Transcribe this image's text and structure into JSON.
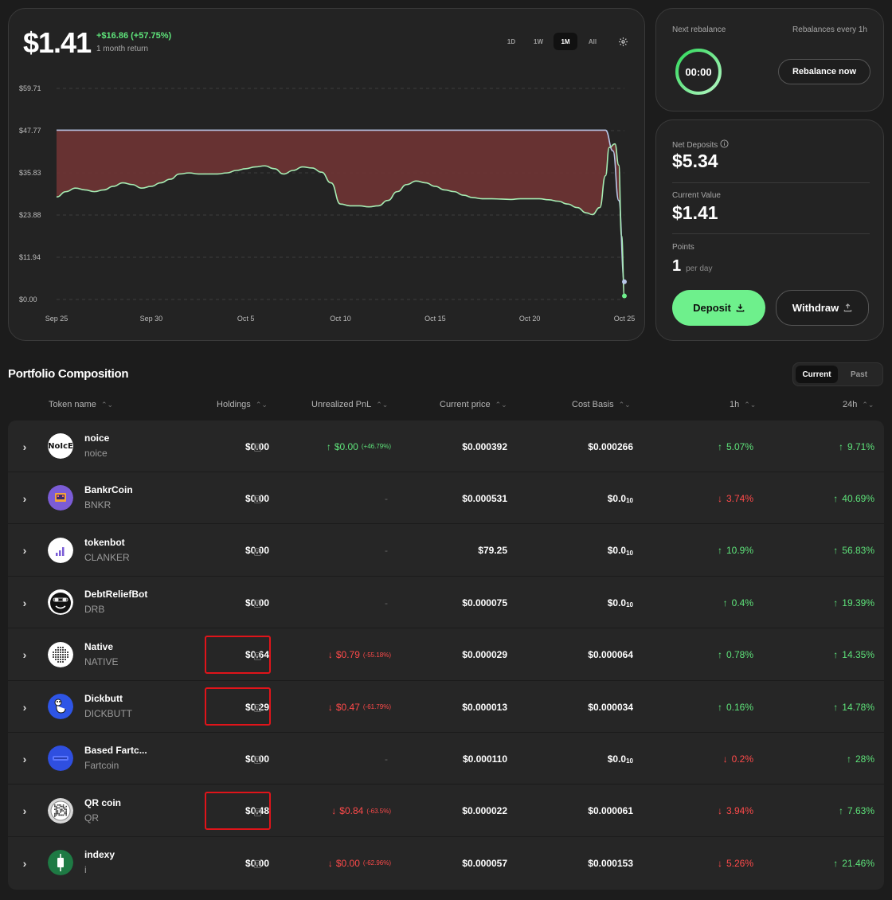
{
  "summary": {
    "value": "$1.41",
    "change": "+$16.86 (+57.75%)",
    "change_label": "1 month return",
    "ranges": [
      "1D",
      "1W",
      "1M",
      "All"
    ],
    "active_range": "1M"
  },
  "chart_data": {
    "type": "area",
    "y_ticks": [
      "$59.71",
      "$47.77",
      "$35.83",
      "$23.88",
      "$11.94",
      "$0.00"
    ],
    "x_ticks": [
      "Sep 25",
      "Sep 30",
      "Oct 5",
      "Oct 10",
      "Oct 15",
      "Oct 20",
      "Oct 25"
    ],
    "ylim": [
      0,
      59.71
    ],
    "xlim": [
      0,
      30
    ],
    "grid": true,
    "colors": {
      "line_upper": "#b9c6e8",
      "line_lower": "#a6ecb3",
      "fill": "#6b3434"
    },
    "series": [
      {
        "values": [
          [
            0,
            47.9
          ],
          [
            5,
            47.9
          ],
          [
            10,
            47.9
          ],
          [
            15,
            47.9
          ],
          [
            20,
            47.9
          ],
          [
            25,
            47.9
          ],
          [
            29.0,
            47.9
          ],
          [
            29.4,
            42
          ],
          [
            29.7,
            28
          ],
          [
            30,
            5
          ]
        ]
      },
      {
        "values": [
          [
            0,
            29
          ],
          [
            0.5,
            30.5
          ],
          [
            1,
            31.5
          ],
          [
            1.5,
            31
          ],
          [
            2,
            30.5
          ],
          [
            2.5,
            31
          ],
          [
            3,
            32
          ],
          [
            3.5,
            33
          ],
          [
            4,
            32.5
          ],
          [
            4.5,
            31.5
          ],
          [
            5,
            32
          ],
          [
            5.5,
            33
          ],
          [
            6,
            34
          ],
          [
            6.5,
            35.5
          ],
          [
            7,
            35.8
          ],
          [
            7.5,
            35.5
          ],
          [
            8,
            35.5
          ],
          [
            8.5,
            35.5
          ],
          [
            9,
            35.8
          ],
          [
            9.5,
            36.5
          ],
          [
            10,
            37
          ],
          [
            10.5,
            37.5
          ],
          [
            11,
            37.8
          ],
          [
            11.5,
            37
          ],
          [
            12,
            35.5
          ],
          [
            12.5,
            36.5
          ],
          [
            13,
            37.5
          ],
          [
            13.5,
            37.2
          ],
          [
            14,
            36
          ],
          [
            14.5,
            33
          ],
          [
            15,
            27
          ],
          [
            15.5,
            26.5
          ],
          [
            16,
            26.5
          ],
          [
            16.5,
            26.2
          ],
          [
            17,
            26.5
          ],
          [
            17.5,
            28
          ],
          [
            18,
            30.5
          ],
          [
            18.5,
            32.5
          ],
          [
            19,
            33.5
          ],
          [
            19.5,
            33
          ],
          [
            20,
            32
          ],
          [
            20.5,
            31
          ],
          [
            21,
            30.5
          ],
          [
            21.5,
            29.5
          ],
          [
            22,
            28.8
          ],
          [
            22.5,
            28.5
          ],
          [
            23,
            28.5
          ],
          [
            23.5,
            28.4
          ],
          [
            24,
            28.3
          ],
          [
            24.5,
            28.5
          ],
          [
            25,
            28.5
          ],
          [
            25.5,
            28.5
          ],
          [
            26,
            28.2
          ],
          [
            26.5,
            27.8
          ],
          [
            27,
            27
          ],
          [
            27.5,
            26
          ],
          [
            28,
            24.5
          ],
          [
            28.3,
            24
          ],
          [
            28.7,
            26
          ],
          [
            29.0,
            35
          ],
          [
            29.2,
            43
          ],
          [
            29.5,
            44
          ],
          [
            29.7,
            38
          ],
          [
            29.85,
            18
          ],
          [
            30,
            1
          ]
        ]
      }
    ]
  },
  "rebalance": {
    "label": "Next rebalance",
    "schedule": "Rebalances every 1h",
    "timer": "00:00",
    "button": "Rebalance now"
  },
  "deposits": {
    "net_label": "Net Deposits",
    "net_value": "$5.34",
    "current_label": "Current Value",
    "current_value": "$1.41",
    "points_label": "Points",
    "points_value": "1",
    "points_unit": "per day",
    "deposit_btn": "Deposit",
    "withdraw_btn": "Withdraw"
  },
  "portfolio": {
    "title": "Portfolio Composition",
    "tabs": [
      "Current",
      "Past"
    ],
    "columns": [
      "Token name",
      "Holdings",
      "Unrealized PnL",
      "Current price",
      "Cost Basis",
      "1h",
      "24h"
    ],
    "rows": [
      {
        "name": "noice",
        "symbol": "noice",
        "holding": "$0.00",
        "pnl": "$0.00",
        "pnl_pct": "(+46.79%)",
        "pnl_dir": "up",
        "price": "$0.000392",
        "cost": "$0.000266",
        "h1": "5.07%",
        "h1_dir": "up",
        "h24": "9.71%",
        "h24_dir": "up",
        "logo": "noice-logo",
        "logo_bg": "#ffffff",
        "logo_text": "NoIcE",
        "highlight": false
      },
      {
        "name": "BankrCoin",
        "symbol": "BNKR",
        "holding": "$0.00",
        "pnl": "-",
        "pnl_pct": "",
        "pnl_dir": "none",
        "price": "$0.000531",
        "cost": "$0.0",
        "cost_sub": "10",
        "h1": "3.74%",
        "h1_dir": "down",
        "h24": "40.69%",
        "h24_dir": "up",
        "logo": "bankr-logo",
        "logo_bg": "#7b5cd6",
        "logo_text": "",
        "highlight": false
      },
      {
        "name": "tokenbot",
        "symbol": "CLANKER",
        "holding": "$0.00",
        "pnl": "-",
        "pnl_pct": "",
        "pnl_dir": "none",
        "price": "$79.25",
        "cost": "$0.0",
        "cost_sub": "10",
        "h1": "10.9%",
        "h1_dir": "up",
        "h24": "56.83%",
        "h24_dir": "up",
        "logo": "bar-chart-logo",
        "logo_bg": "#ffffff",
        "logo_text": "",
        "highlight": false
      },
      {
        "name": "DebtReliefBot",
        "symbol": "DRB",
        "holding": "$0.00",
        "pnl": "-",
        "pnl_pct": "",
        "pnl_dir": "none",
        "price": "$0.000075",
        "cost": "$0.0",
        "cost_sub": "10",
        "h1": "0.4%",
        "h1_dir": "up",
        "h24": "19.39%",
        "h24_dir": "up",
        "logo": "face-logo",
        "logo_bg": "#ffffff",
        "logo_text": "",
        "highlight": false
      },
      {
        "name": "Native",
        "symbol": "NATIVE",
        "holding": "$0.64",
        "pnl": "$0.79",
        "pnl_pct": "(-55.18%)",
        "pnl_dir": "down",
        "price": "$0.000029",
        "cost": "$0.000064",
        "h1": "0.78%",
        "h1_dir": "up",
        "h24": "14.35%",
        "h24_dir": "up",
        "logo": "dots-logo",
        "logo_bg": "#ffffff",
        "logo_text": "",
        "highlight": true
      },
      {
        "name": "Dickbutt",
        "symbol": "DICKBUTT",
        "holding": "$0.29",
        "pnl": "$0.47",
        "pnl_pct": "(-61.79%)",
        "pnl_dir": "down",
        "price": "$0.000013",
        "cost": "$0.000034",
        "h1": "0.16%",
        "h1_dir": "up",
        "h24": "14.78%",
        "h24_dir": "up",
        "logo": "dickbutt-logo",
        "logo_bg": "#2e55e6",
        "logo_text": "",
        "highlight": true
      },
      {
        "name": "Based Fartc...",
        "symbol": "Fartcoin",
        "holding": "$0.00",
        "pnl": "-",
        "pnl_pct": "",
        "pnl_dir": "none",
        "price": "$0.000110",
        "cost": "$0.0",
        "cost_sub": "10",
        "h1": "0.2%",
        "h1_dir": "down",
        "h24": "28%",
        "h24_dir": "up",
        "logo": "fartcoin-logo",
        "logo_bg": "#2f4fe0",
        "logo_text": "",
        "highlight": false
      },
      {
        "name": "QR coin",
        "symbol": "QR",
        "holding": "$0.48",
        "pnl": "$0.84",
        "pnl_pct": "(-63.5%)",
        "pnl_dir": "down",
        "price": "$0.000022",
        "cost": "$0.000061",
        "h1": "3.94%",
        "h1_dir": "down",
        "h24": "7.63%",
        "h24_dir": "up",
        "logo": "qr-logo",
        "logo_bg": "#d8d8d8",
        "logo_text": "",
        "highlight": true
      },
      {
        "name": "indexy",
        "symbol": "i",
        "holding": "$0.00",
        "pnl": "$0.00",
        "pnl_pct": "(-62.96%)",
        "pnl_dir": "down",
        "price": "$0.000057",
        "cost": "$0.000153",
        "h1": "5.26%",
        "h1_dir": "down",
        "h24": "21.46%",
        "h24_dir": "up",
        "logo": "candle-logo",
        "logo_bg": "#1e7a44",
        "logo_text": "",
        "highlight": false
      }
    ]
  }
}
